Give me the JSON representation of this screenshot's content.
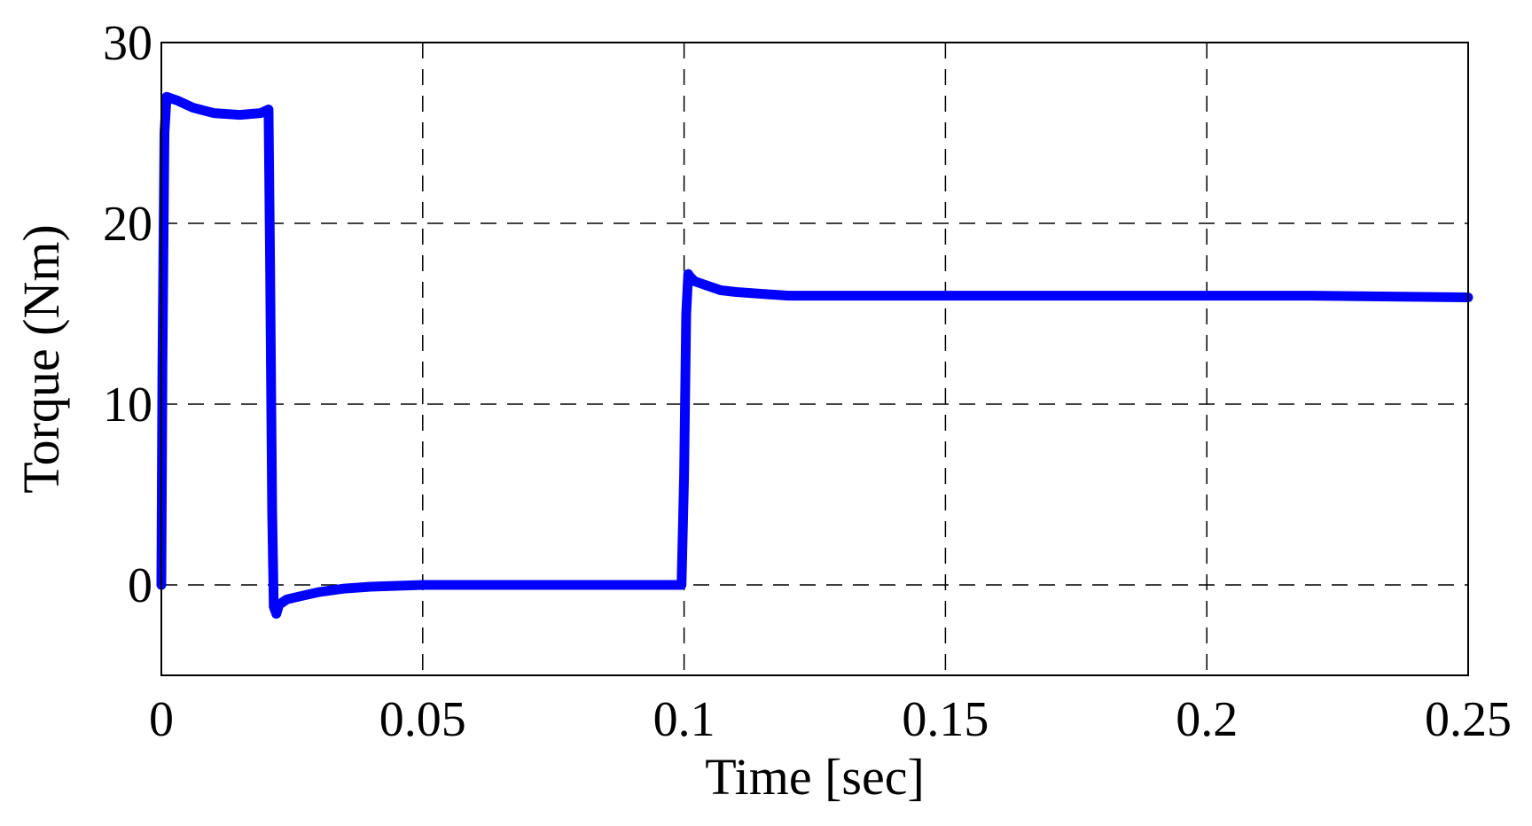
{
  "chart_data": {
    "type": "line",
    "title": "",
    "xlabel": "Time [sec]",
    "ylabel": "Torque (Nm)",
    "xlim": [
      0,
      0.25
    ],
    "ylim": [
      -5,
      30
    ],
    "xticks": [
      0,
      0.05,
      0.1,
      0.15,
      0.2,
      0.25
    ],
    "xtick_labels": [
      "0",
      "0.05",
      "0.1",
      "0.15",
      "0.2",
      "0.25"
    ],
    "yticks": [
      0,
      10,
      20,
      30
    ],
    "ytick_labels": [
      "0",
      "10",
      "20",
      "30"
    ],
    "grid": true,
    "legend": "none",
    "series": [
      {
        "color": "#0000ff",
        "x": [
          0,
          0.0002,
          0.0006,
          0.001,
          0.003,
          0.006,
          0.01,
          0.015,
          0.019,
          0.0205,
          0.0208,
          0.0212,
          0.0215,
          0.022,
          0.0225,
          0.024,
          0.027,
          0.03,
          0.035,
          0.04,
          0.05,
          0.06,
          0.07,
          0.08,
          0.09,
          0.0995,
          0.1,
          0.1004,
          0.1008,
          0.101,
          0.102,
          0.104,
          0.107,
          0.11,
          0.115,
          0.12,
          0.13,
          0.15,
          0.18,
          0.2,
          0.22,
          0.25
        ],
        "y": [
          0,
          12,
          25,
          27,
          26.8,
          26.4,
          26.1,
          26,
          26.1,
          26.3,
          18,
          4,
          -1.2,
          -1.6,
          -1.1,
          -0.8,
          -0.6,
          -0.4,
          -0.2,
          -0.1,
          0,
          0,
          0,
          0,
          0,
          0,
          6,
          15,
          17.2,
          17.1,
          16.8,
          16.6,
          16.3,
          16.2,
          16.1,
          16,
          16,
          16,
          16,
          16,
          16,
          15.9
        ]
      }
    ]
  }
}
